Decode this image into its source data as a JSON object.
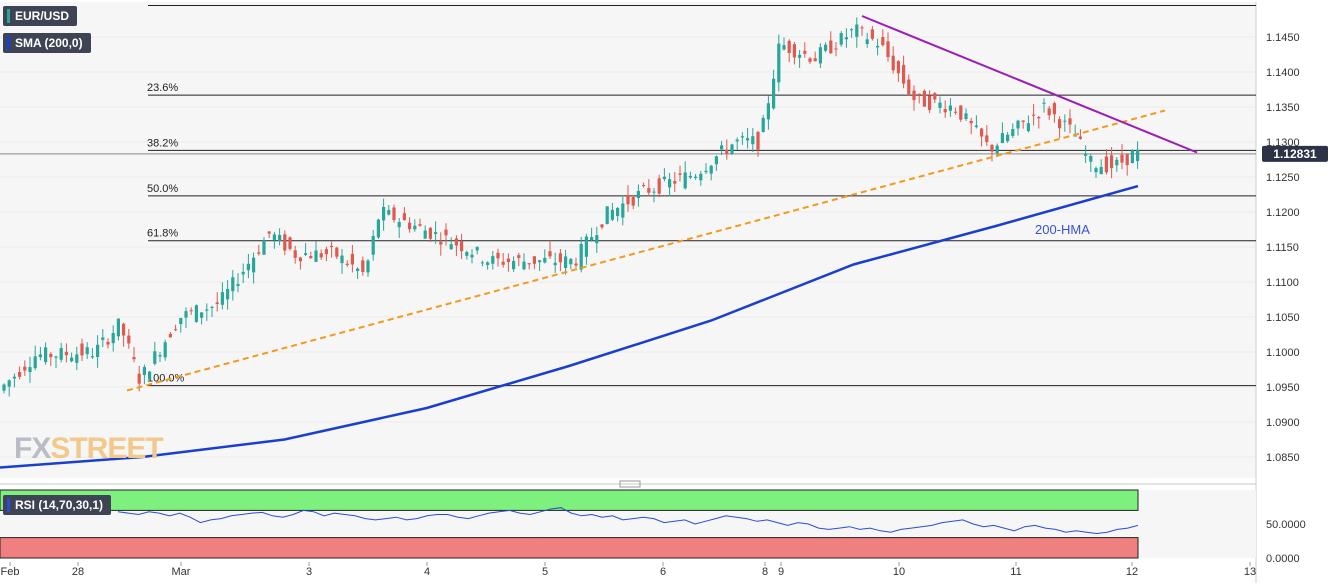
{
  "legend": {
    "symbol": "EUR/USD",
    "sma": "SMA (200,0)",
    "rsi": "RSI (14,70,30,1)"
  },
  "watermark": {
    "fx": "FX",
    "street": "STREET"
  },
  "colors": {
    "price_up": "#27a69a",
    "price_down": "#e0584e",
    "ma_line": "#1a3fcf",
    "rising_trendline": "#f39a1c",
    "falling_trendline": "#9b1fb3",
    "rsi_line": "#2c4bd3",
    "rsi_overbought_zone": "#7ef07e",
    "rsi_oversold_zone": "#f08080",
    "price_label_bg": "#2c3347"
  },
  "chart_data": [
    {
      "type": "candlestick",
      "symbol": "EUR/USD",
      "ylim": [
        1.082,
        1.15
      ],
      "y_ticks": [
        "1.1450",
        "1.1400",
        "1.1350",
        "1.1300",
        "1.1250",
        "1.1200",
        "1.1150",
        "1.1100",
        "1.1050",
        "1.1000",
        "1.0950",
        "1.0900",
        "1.0850"
      ],
      "x_ticks": [
        "Feb",
        "28",
        "Mar",
        "3",
        "4",
        "5",
        "6",
        "8",
        "9",
        "10",
        "11",
        "12",
        "13"
      ],
      "last_price": "1.12831",
      "fibonacci_levels": [
        {
          "label": "23.6%",
          "price": 1.1367
        },
        {
          "label": "38.2%",
          "price": 1.1288
        },
        {
          "label": "50.0%",
          "price": 1.1223
        },
        {
          "label": "61.8%",
          "price": 1.1159
        },
        {
          "label": "100.0%",
          "price": 1.0952
        }
      ],
      "fib_high_price": 1.1495,
      "moving_average": {
        "label": "200-HMA",
        "points": [
          [
            0,
            1.0835
          ],
          [
            12.5,
            1.085
          ],
          [
            25,
            1.0875
          ],
          [
            37.5,
            1.092
          ],
          [
            50,
            1.098
          ],
          [
            62.5,
            1.1045
          ],
          [
            75,
            1.1125
          ],
          [
            87.5,
            1.118
          ],
          [
            100,
            1.1237
          ]
        ]
      },
      "rising_trendline": {
        "from": [
          0,
          1.0945
        ],
        "to": [
          100,
          1.1345
        ]
      },
      "falling_trendline": {
        "from": [
          0,
          1.148
        ],
        "to": [
          100,
          1.1285
        ]
      },
      "x_range": [
        0,
        100
      ]
    },
    {
      "type": "line",
      "name": "RSI (14,70,30,1)",
      "ylim": [
        0,
        100
      ],
      "y_ticks": [
        "50.0000",
        "0.0000"
      ],
      "overbought": 70,
      "oversold": 30,
      "values": [
        68,
        66,
        64,
        68,
        66,
        62,
        66,
        60,
        52,
        56,
        58,
        62,
        64,
        66,
        67,
        62,
        60,
        64,
        70,
        68,
        62,
        66,
        64,
        62,
        58,
        56,
        58,
        60,
        56,
        58,
        62,
        64,
        64,
        60,
        58,
        62,
        66,
        68,
        70,
        66,
        64,
        68,
        72,
        74,
        66,
        62,
        64,
        60,
        62,
        56,
        58,
        60,
        58,
        52,
        54,
        56,
        50,
        54,
        58,
        62,
        60,
        58,
        54,
        56,
        52,
        48,
        52,
        50,
        44,
        42,
        44,
        46,
        42,
        44,
        40,
        38,
        42,
        44,
        46,
        48,
        52,
        54,
        56,
        50,
        46,
        48,
        44,
        40,
        46,
        48,
        44,
        42,
        38,
        40,
        38,
        36,
        38,
        42,
        44,
        48
      ]
    }
  ]
}
